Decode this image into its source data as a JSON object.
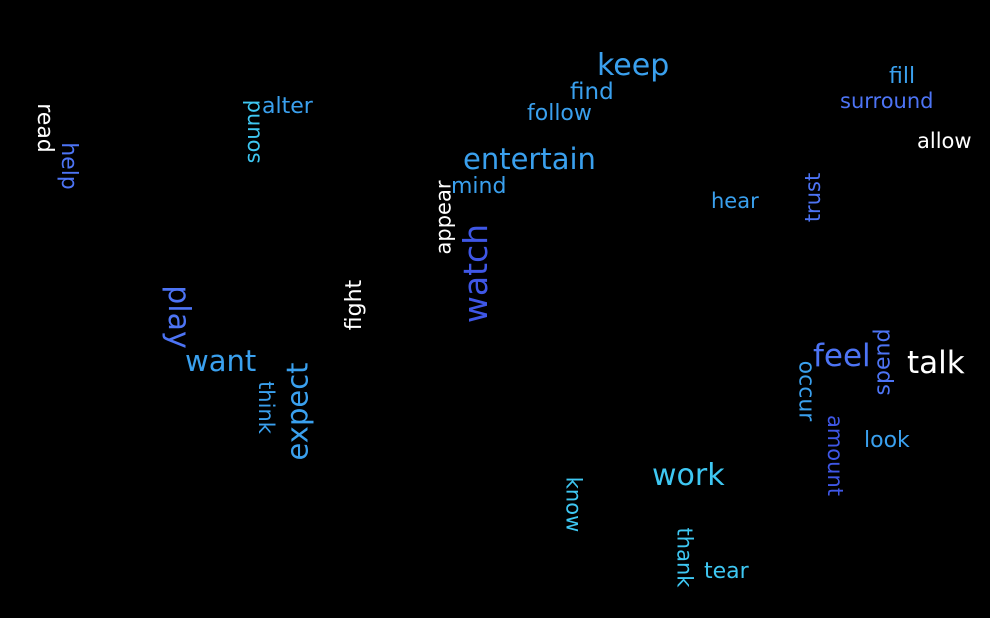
{
  "words": {
    "keep": "keep",
    "find": "find",
    "follow": "follow",
    "fill": "fill",
    "surround": "surround",
    "allow": "allow",
    "read": "read",
    "help": "help",
    "sound": "sound",
    "alter": "alter",
    "entertain": "entertain",
    "mind": "mind",
    "appear": "appear",
    "hear": "hear",
    "trust": "trust",
    "watch": "watch",
    "fight": "fight",
    "play": "play",
    "want": "want",
    "think": "think",
    "expect": "expect",
    "feel": "feel",
    "spend": "spend",
    "talk": "talk",
    "occur": "occur",
    "amount": "amount",
    "look": "look",
    "work": "work",
    "know": "know",
    "thank": "thank",
    "tear": "tear"
  },
  "colors": {
    "background": "#000000",
    "white": "#ffffff",
    "cyan": "#3ec7f2",
    "sky": "#3aa0ee",
    "blue": "#4d74f5",
    "royal": "#3f57e6"
  }
}
